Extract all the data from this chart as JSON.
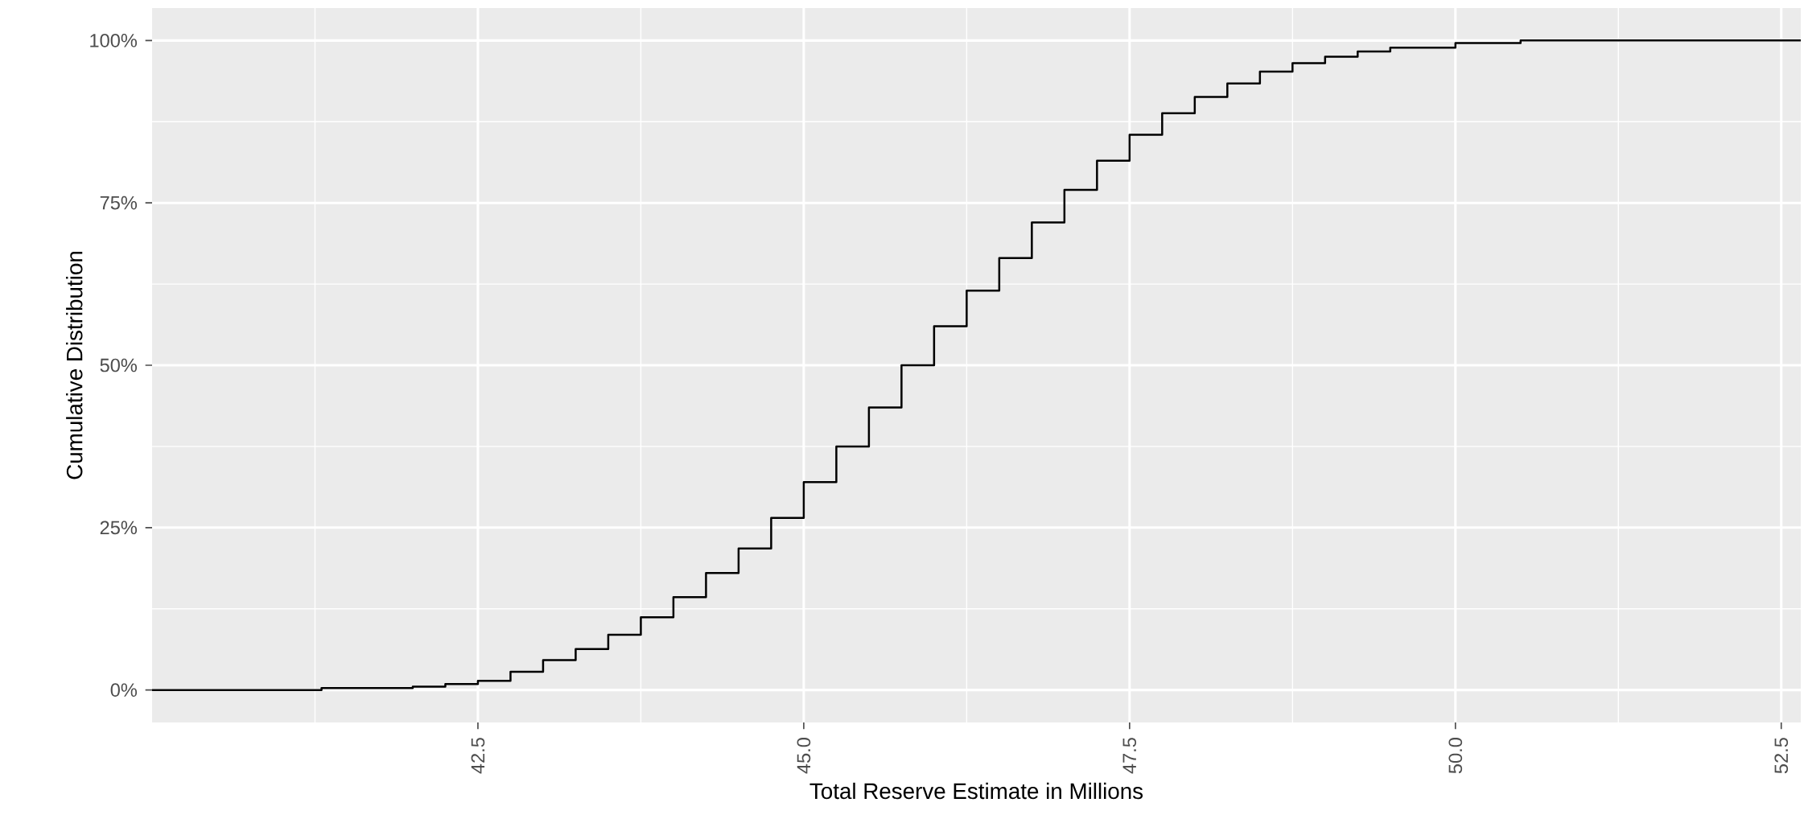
{
  "chart_data": {
    "type": "step",
    "xlabel": "Total Reserve Estimate in Millions",
    "ylabel": "Cumulative Distribution",
    "x": [
      40.0,
      41.3,
      42.0,
      42.25,
      42.5,
      42.75,
      43.0,
      43.25,
      43.5,
      43.75,
      44.0,
      44.25,
      44.5,
      44.75,
      45.0,
      45.25,
      45.5,
      45.75,
      46.0,
      46.25,
      46.5,
      46.75,
      47.0,
      47.25,
      47.5,
      47.75,
      48.0,
      48.25,
      48.5,
      48.75,
      49.0,
      49.25,
      49.5,
      50.0,
      50.5,
      52.65
    ],
    "values": [
      0,
      0.3,
      0.5,
      0.9,
      1.4,
      2.8,
      4.6,
      6.3,
      8.5,
      11.2,
      14.3,
      18,
      21.8,
      26.5,
      32,
      37.5,
      43.5,
      50,
      56,
      61.5,
      66.5,
      72,
      77,
      81.5,
      85.5,
      88.8,
      91.3,
      93.4,
      95.2,
      96.5,
      97.5,
      98.3,
      98.9,
      99.6,
      100,
      100
    ],
    "color": "#000000",
    "xlim": [
      40.0,
      52.65
    ],
    "ylim": [
      -5,
      105
    ],
    "xticks": [
      {
        "value": 42.5,
        "label": "42.5"
      },
      {
        "value": 45,
        "label": "45.0"
      },
      {
        "value": 47.5,
        "label": "47.5"
      },
      {
        "value": 50,
        "label": "50.0"
      },
      {
        "value": 52.5,
        "label": "52.5"
      }
    ],
    "yticks": [
      {
        "value": 0,
        "label": "0%"
      },
      {
        "value": 25,
        "label": "25%"
      },
      {
        "value": 50,
        "label": "50%"
      },
      {
        "value": 75,
        "label": "75%"
      },
      {
        "value": 100,
        "label": "100%"
      }
    ],
    "grid": true
  }
}
